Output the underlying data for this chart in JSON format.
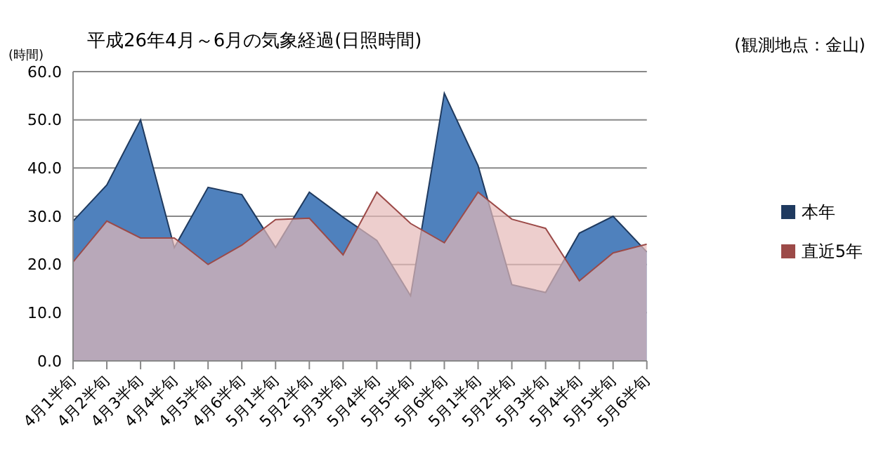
{
  "chart_data": {
    "type": "area",
    "title": "平成26年4月～6月の気象経過(日照時間)",
    "ylabel": "(時間)",
    "annotations": [
      "(観測地点：金山)"
    ],
    "categories": [
      "4月1半旬",
      "4月2半旬",
      "4月3半旬",
      "4月4半旬",
      "4月5半旬",
      "4月6半旬",
      "5月1半旬",
      "5月2半旬",
      "5月3半旬",
      "5月4半旬",
      "5月5半旬",
      "5月6半旬",
      "5月1半旬",
      "5月2半旬",
      "5月3半旬",
      "5月4半旬",
      "5月5半旬",
      "5月6半旬"
    ],
    "series": [
      {
        "name": "本年",
        "color": "#4f81bd",
        "values": [
          29,
          36.5,
          50,
          23.5,
          36,
          34.5,
          23.5,
          35,
          29.8,
          25,
          13.5,
          55.5,
          40.5,
          15.8,
          14.2,
          26.5,
          30,
          22.6
        ]
      },
      {
        "name": "直近5年",
        "color": "#e6b9b8",
        "values": [
          20.5,
          29,
          25.5,
          25.5,
          20,
          24,
          29.3,
          29.6,
          22,
          35,
          28.5,
          24.5,
          35,
          29.4,
          27.5,
          16.6,
          22.4,
          24.2
        ]
      }
    ],
    "ylim": [
      0,
      60
    ],
    "yticks": [
      {
        "value": 0,
        "label": "0.0"
      },
      {
        "value": 10,
        "label": "10.0"
      },
      {
        "value": 20,
        "label": "20.0"
      },
      {
        "value": 30,
        "label": "30.0"
      },
      {
        "value": 40,
        "label": "40.0"
      },
      {
        "value": 50,
        "label": "50.0"
      },
      {
        "value": 60,
        "label": "60.0"
      }
    ],
    "grid": "y",
    "legend": "right"
  }
}
